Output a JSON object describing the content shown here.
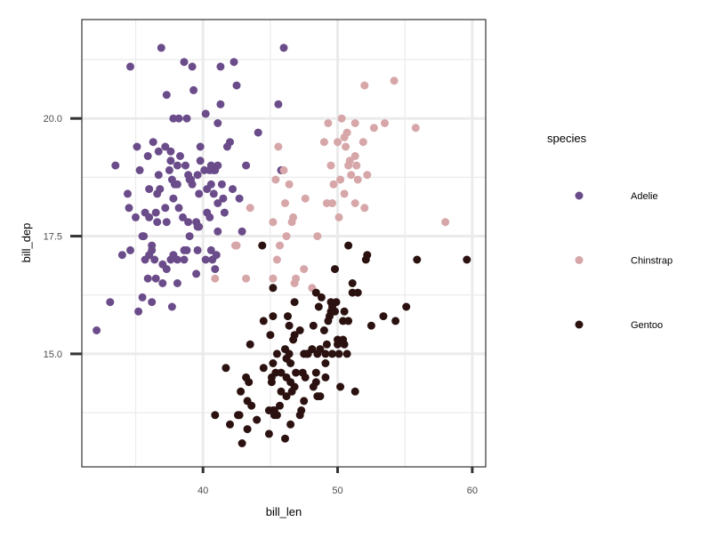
{
  "chart_data": {
    "type": "scatter",
    "xlabel": "bill_len",
    "ylabel": "bill_dep",
    "xlim": [
      31,
      61
    ],
    "ylim": [
      12.6,
      22.1
    ],
    "x_ticks": [
      40,
      50,
      60
    ],
    "x_tick_labels": [
      "40",
      "50",
      "60"
    ],
    "y_ticks": [
      15.0,
      17.5,
      20.0
    ],
    "y_tick_labels": [
      "15.0",
      "17.5",
      "20.0"
    ],
    "x_minor_ticks": [
      35,
      45,
      55
    ],
    "y_minor_ticks": [
      13.75,
      16.25,
      18.75,
      21.25
    ],
    "grid": true,
    "legend": {
      "title": "species",
      "position": "right"
    },
    "colors": {
      "Adelie": "#6b4c8a",
      "Chinstrap": "#d6a6a8",
      "Gentoo": "#2b1210"
    },
    "series": [
      {
        "name": "Adelie",
        "points": [
          [
            32.1,
            15.5
          ],
          [
            33.1,
            16.1
          ],
          [
            33.5,
            19.0
          ],
          [
            34.0,
            17.1
          ],
          [
            34.4,
            18.4
          ],
          [
            34.5,
            18.1
          ],
          [
            34.6,
            21.1
          ],
          [
            34.6,
            17.2
          ],
          [
            35.0,
            17.9
          ],
          [
            35.1,
            19.4
          ],
          [
            35.2,
            15.9
          ],
          [
            35.3,
            18.9
          ],
          [
            35.5,
            17.5
          ],
          [
            35.5,
            16.2
          ],
          [
            35.6,
            17.5
          ],
          [
            35.7,
            18.0
          ],
          [
            35.7,
            17.0
          ],
          [
            35.9,
            16.6
          ],
          [
            35.9,
            19.2
          ],
          [
            36.0,
            17.9
          ],
          [
            36.0,
            18.5
          ],
          [
            36.0,
            17.1
          ],
          [
            36.2,
            16.1
          ],
          [
            36.2,
            17.2
          ],
          [
            36.2,
            17.3
          ],
          [
            36.3,
            19.5
          ],
          [
            36.4,
            17.0
          ],
          [
            36.5,
            16.6
          ],
          [
            36.5,
            18.0
          ],
          [
            36.6,
            17.8
          ],
          [
            36.6,
            18.4
          ],
          [
            36.7,
            18.8
          ],
          [
            36.7,
            19.3
          ],
          [
            36.8,
            18.5
          ],
          [
            36.9,
            21.5
          ],
          [
            37.0,
            16.9
          ],
          [
            37.0,
            16.5
          ],
          [
            37.2,
            18.1
          ],
          [
            37.2,
            19.4
          ],
          [
            37.3,
            17.8
          ],
          [
            37.3,
            16.8
          ],
          [
            37.3,
            20.5
          ],
          [
            37.5,
            18.9
          ],
          [
            37.6,
            17.0
          ],
          [
            37.6,
            19.1
          ],
          [
            37.6,
            19.3
          ],
          [
            37.7,
            18.7
          ],
          [
            37.7,
            16.0
          ],
          [
            37.8,
            18.3
          ],
          [
            37.8,
            17.1
          ],
          [
            37.8,
            20.0
          ],
          [
            37.9,
            18.6
          ],
          [
            38.1,
            18.6
          ],
          [
            38.1,
            17.0
          ],
          [
            38.1,
            19.0
          ],
          [
            38.1,
            16.5
          ],
          [
            38.2,
            18.1
          ],
          [
            38.2,
            20.0
          ],
          [
            38.3,
            19.2
          ],
          [
            38.5,
            17.9
          ],
          [
            38.6,
            21.2
          ],
          [
            38.6,
            17.2
          ],
          [
            38.6,
            17.0
          ],
          [
            38.7,
            19.0
          ],
          [
            38.8,
            17.2
          ],
          [
            38.8,
            20.0
          ],
          [
            38.9,
            18.8
          ],
          [
            38.9,
            17.8
          ],
          [
            39.0,
            18.7
          ],
          [
            39.0,
            17.5
          ],
          [
            39.1,
            18.7
          ],
          [
            39.2,
            21.1
          ],
          [
            39.2,
            18.6
          ],
          [
            39.3,
            20.6
          ],
          [
            39.5,
            16.7
          ],
          [
            39.5,
            17.8
          ],
          [
            39.6,
            17.7
          ],
          [
            39.6,
            18.8
          ],
          [
            39.6,
            17.2
          ],
          [
            39.7,
            18.4
          ],
          [
            39.7,
            17.7
          ],
          [
            39.8,
            19.1
          ],
          [
            39.8,
            19.4
          ],
          [
            40.1,
            18.9
          ],
          [
            40.2,
            17.0
          ],
          [
            40.2,
            20.1
          ],
          [
            40.3,
            18.0
          ],
          [
            40.3,
            18.5
          ],
          [
            40.5,
            17.9
          ],
          [
            40.5,
            18.9
          ],
          [
            40.6,
            18.6
          ],
          [
            40.6,
            19.0
          ],
          [
            40.6,
            17.2
          ],
          [
            40.7,
            17.0
          ],
          [
            40.8,
            18.4
          ],
          [
            40.8,
            18.9
          ],
          [
            40.9,
            16.8
          ],
          [
            40.9,
            18.9
          ],
          [
            41.0,
            17.1
          ],
          [
            41.1,
            19.0
          ],
          [
            41.1,
            18.2
          ],
          [
            41.1,
            17.6
          ],
          [
            41.1,
            19.9
          ],
          [
            41.3,
            21.1
          ],
          [
            41.3,
            20.3
          ],
          [
            41.4,
            18.6
          ],
          [
            41.5,
            18.3
          ],
          [
            41.6,
            18.0
          ],
          [
            41.8,
            19.4
          ],
          [
            42.0,
            19.5
          ],
          [
            42.2,
            18.5
          ],
          [
            42.3,
            21.2
          ],
          [
            42.5,
            20.7
          ],
          [
            42.7,
            18.3
          ],
          [
            42.9,
            17.6
          ],
          [
            43.2,
            19.0
          ],
          [
            44.1,
            19.7
          ],
          [
            45.6,
            20.3
          ],
          [
            45.8,
            18.9
          ],
          [
            46.0,
            21.5
          ]
        ]
      },
      {
        "name": "Chinstrap",
        "points": [
          [
            40.9,
            16.6
          ],
          [
            42.4,
            17.3
          ],
          [
            42.5,
            17.3
          ],
          [
            43.2,
            16.6
          ],
          [
            43.5,
            18.1
          ],
          [
            45.2,
            17.8
          ],
          [
            45.2,
            16.6
          ],
          [
            45.4,
            18.7
          ],
          [
            45.5,
            17.0
          ],
          [
            45.6,
            19.4
          ],
          [
            45.7,
            17.3
          ],
          [
            46.0,
            18.9
          ],
          [
            46.1,
            18.2
          ],
          [
            46.2,
            17.5
          ],
          [
            46.4,
            18.6
          ],
          [
            46.6,
            17.8
          ],
          [
            46.7,
            17.9
          ],
          [
            46.8,
            16.5
          ],
          [
            46.9,
            16.6
          ],
          [
            47.5,
            16.8
          ],
          [
            47.6,
            18.3
          ],
          [
            48.1,
            16.4
          ],
          [
            48.5,
            17.5
          ],
          [
            49.0,
            19.5
          ],
          [
            49.2,
            18.2
          ],
          [
            49.3,
            19.9
          ],
          [
            49.5,
            19.0
          ],
          [
            49.6,
            18.2
          ],
          [
            49.7,
            18.6
          ],
          [
            50.0,
            19.5
          ],
          [
            50.1,
            17.9
          ],
          [
            50.2,
            18.7
          ],
          [
            50.3,
            20.0
          ],
          [
            50.5,
            18.4
          ],
          [
            50.5,
            19.6
          ],
          [
            50.6,
            19.4
          ],
          [
            50.7,
            19.7
          ],
          [
            50.8,
            19.0
          ],
          [
            50.9,
            19.1
          ],
          [
            51.0,
            18.8
          ],
          [
            51.3,
            18.2
          ],
          [
            51.3,
            19.2
          ],
          [
            51.3,
            19.9
          ],
          [
            51.4,
            19.0
          ],
          [
            51.5,
            18.7
          ],
          [
            51.9,
            19.5
          ],
          [
            52.0,
            18.1
          ],
          [
            52.0,
            20.7
          ],
          [
            52.2,
            18.8
          ],
          [
            52.7,
            19.8
          ],
          [
            53.5,
            19.9
          ],
          [
            54.2,
            20.8
          ],
          [
            55.8,
            19.8
          ],
          [
            58.0,
            17.8
          ]
        ]
      },
      {
        "name": "Gentoo",
        "points": [
          [
            40.9,
            13.7
          ],
          [
            41.7,
            14.7
          ],
          [
            42.0,
            13.5
          ],
          [
            42.6,
            13.7
          ],
          [
            42.7,
            13.7
          ],
          [
            42.8,
            14.2
          ],
          [
            42.9,
            13.1
          ],
          [
            43.2,
            14.5
          ],
          [
            43.3,
            13.4
          ],
          [
            43.3,
            14.0
          ],
          [
            43.4,
            14.4
          ],
          [
            43.5,
            15.2
          ],
          [
            43.6,
            13.9
          ],
          [
            44.0,
            13.6
          ],
          [
            44.4,
            17.3
          ],
          [
            44.5,
            14.7
          ],
          [
            44.5,
            15.7
          ],
          [
            44.9,
            13.3
          ],
          [
            44.9,
            13.8
          ],
          [
            45.0,
            15.4
          ],
          [
            45.1,
            14.5
          ],
          [
            45.1,
            14.4
          ],
          [
            45.2,
            13.8
          ],
          [
            45.2,
            14.8
          ],
          [
            45.2,
            15.8
          ],
          [
            45.2,
            16.4
          ],
          [
            45.3,
            13.7
          ],
          [
            45.3,
            13.8
          ],
          [
            45.4,
            14.6
          ],
          [
            45.5,
            13.7
          ],
          [
            45.5,
            15.0
          ],
          [
            45.7,
            13.9
          ],
          [
            45.8,
            14.6
          ],
          [
            45.8,
            14.2
          ],
          [
            46.1,
            13.2
          ],
          [
            46.1,
            15.1
          ],
          [
            46.2,
            14.5
          ],
          [
            46.2,
            14.1
          ],
          [
            46.2,
            14.9
          ],
          [
            46.3,
            15.8
          ],
          [
            46.4,
            15.0
          ],
          [
            46.4,
            15.6
          ],
          [
            46.5,
            13.5
          ],
          [
            46.5,
            14.4
          ],
          [
            46.5,
            14.8
          ],
          [
            46.6,
            14.2
          ],
          [
            46.7,
            15.3
          ],
          [
            46.8,
            14.3
          ],
          [
            46.8,
            15.4
          ],
          [
            46.8,
            16.1
          ],
          [
            46.9,
            14.6
          ],
          [
            47.2,
            13.7
          ],
          [
            47.2,
            15.5
          ],
          [
            47.3,
            13.8
          ],
          [
            47.4,
            14.6
          ],
          [
            47.5,
            14.0
          ],
          [
            47.5,
            15.0
          ],
          [
            47.6,
            14.5
          ],
          [
            47.7,
            15.0
          ],
          [
            47.8,
            15.0
          ],
          [
            48.1,
            15.1
          ],
          [
            48.2,
            14.3
          ],
          [
            48.2,
            15.6
          ],
          [
            48.4,
            14.4
          ],
          [
            48.4,
            14.6
          ],
          [
            48.4,
            16.3
          ],
          [
            48.5,
            14.1
          ],
          [
            48.5,
            15.0
          ],
          [
            48.6,
            16.0
          ],
          [
            48.7,
            14.1
          ],
          [
            48.7,
            15.1
          ],
          [
            48.8,
            16.2
          ],
          [
            49.0,
            15.5
          ],
          [
            49.1,
            14.5
          ],
          [
            49.1,
            14.8
          ],
          [
            49.1,
            15.0
          ],
          [
            49.2,
            15.2
          ],
          [
            49.3,
            15.7
          ],
          [
            49.4,
            15.8
          ],
          [
            49.5,
            15.9
          ],
          [
            49.5,
            16.1
          ],
          [
            49.6,
            15.0
          ],
          [
            49.6,
            16.0
          ],
          [
            49.8,
            15.9
          ],
          [
            49.8,
            16.8
          ],
          [
            49.9,
            16.1
          ],
          [
            50.0,
            15.2
          ],
          [
            50.0,
            15.3
          ],
          [
            50.1,
            15.0
          ],
          [
            50.2,
            14.3
          ],
          [
            50.4,
            15.3
          ],
          [
            50.4,
            15.7
          ],
          [
            50.5,
            15.2
          ],
          [
            50.5,
            15.9
          ],
          [
            50.7,
            15.0
          ],
          [
            50.8,
            15.7
          ],
          [
            50.8,
            17.3
          ],
          [
            51.1,
            16.3
          ],
          [
            51.1,
            16.5
          ],
          [
            51.3,
            14.2
          ],
          [
            51.5,
            16.3
          ],
          [
            52.1,
            17.0
          ],
          [
            52.2,
            17.1
          ],
          [
            52.5,
            15.6
          ],
          [
            53.4,
            15.8
          ],
          [
            54.3,
            15.7
          ],
          [
            55.1,
            16.0
          ],
          [
            55.9,
            17.0
          ],
          [
            59.6,
            17.0
          ]
        ]
      }
    ]
  }
}
